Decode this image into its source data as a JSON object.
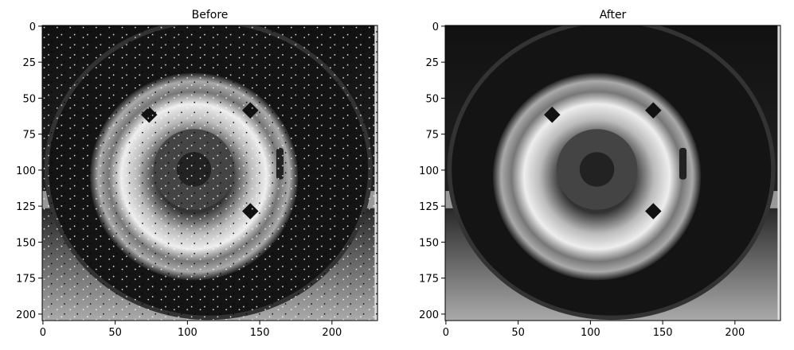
{
  "chart_data": [
    {
      "type": "image",
      "title": "Before",
      "xlim": [
        -0.5,
        231.5
      ],
      "ylim": [
        204.5,
        -0.5
      ],
      "xticks": [
        0,
        50,
        100,
        150,
        200
      ],
      "yticks": [
        0,
        25,
        50,
        75,
        100,
        125,
        150,
        175,
        200
      ]
    },
    {
      "type": "image",
      "title": "After",
      "xlim": [
        -0.5,
        231.5
      ],
      "ylim": [
        204.5,
        -0.5
      ],
      "xticks": [
        0,
        50,
        100,
        150,
        200
      ],
      "yticks": [
        0,
        25,
        50,
        75,
        100,
        125,
        150,
        175,
        200
      ]
    }
  ]
}
